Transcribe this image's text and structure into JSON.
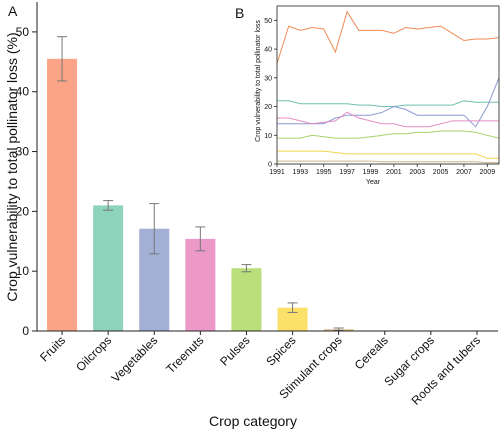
{
  "chart_data": [
    {
      "panel_label": "A",
      "type": "bar",
      "ylabel": "Crop vulnerability to total pollinator loss (%)",
      "xlabel": "Crop category",
      "ylim": [
        0,
        55
      ],
      "yticks": [
        0,
        10,
        20,
        30,
        40,
        50
      ],
      "categories": [
        "Fruits",
        "Oilcrops",
        "Vegetables",
        "Treenuts",
        "Pulses",
        "Spices",
        "Stimulant crops",
        "Cereals",
        "Sugar crops",
        "Roots and tubers"
      ],
      "values": [
        45.5,
        21.0,
        17.1,
        15.4,
        10.5,
        3.9,
        0.3,
        0,
        0,
        0
      ],
      "errors": [
        3.7,
        0.8,
        4.2,
        2.0,
        0.6,
        0.8,
        0.2,
        0,
        0,
        0
      ],
      "colors": [
        "#fca487",
        "#8ed3bc",
        "#a3b0d5",
        "#ec99c8",
        "#b9e07a",
        "#fbe16a",
        "#e1c28f",
        "#cccccc",
        "#cccccc",
        "#cccccc"
      ]
    },
    {
      "panel_label": "B",
      "type": "line",
      "ylabel": "Crop vulnerability to total pollinator loss",
      "xlabel": "Year",
      "xlim": [
        1991,
        2010
      ],
      "ylim": [
        0,
        55
      ],
      "xticks": [
        1991,
        1993,
        1995,
        1997,
        1999,
        2001,
        2003,
        2005,
        2007,
        2009
      ],
      "yticks": [
        0,
        10,
        20,
        30,
        40,
        50
      ],
      "x": [
        1991,
        1992,
        1993,
        1994,
        1995,
        1996,
        1997,
        1998,
        1999,
        2000,
        2001,
        2002,
        2003,
        2004,
        2005,
        2006,
        2007,
        2008,
        2009,
        2010
      ],
      "series": [
        {
          "color": "#ee8a55",
          "values": [
            35,
            48,
            46.5,
            47.5,
            47,
            39,
            53,
            46.5,
            46.5,
            46.5,
            45.5,
            47.5,
            47,
            47.5,
            48,
            45.5,
            43,
            43.5,
            43.5,
            44
          ]
        },
        {
          "color": "#6fc0b0",
          "values": [
            22,
            22,
            21,
            21,
            21,
            21,
            21,
            20.5,
            20.5,
            20,
            20,
            20.5,
            20.5,
            20.5,
            20.5,
            20.5,
            22,
            21.5,
            21.5,
            21.5
          ]
        },
        {
          "color": "#8c9ad0",
          "values": [
            14,
            14,
            14,
            14,
            14,
            16,
            17,
            17,
            17,
            18,
            20,
            19,
            17,
            17,
            17,
            17,
            17,
            13,
            20,
            30
          ]
        },
        {
          "color": "#e48dc2",
          "values": [
            16,
            16,
            15,
            14,
            14.5,
            15,
            18,
            16,
            15,
            14,
            14,
            13,
            13,
            13,
            14,
            15,
            15,
            15,
            15,
            15
          ]
        },
        {
          "color": "#a6d26a",
          "values": [
            9,
            9,
            9,
            10,
            9.5,
            9,
            9,
            9,
            9.5,
            10,
            10.5,
            10.5,
            11,
            11,
            11.5,
            11.5,
            11.5,
            11,
            10,
            9
          ]
        },
        {
          "color": "#f0d64a",
          "values": [
            4.5,
            4.5,
            4.5,
            4.5,
            4.5,
            4,
            3.5,
            3.5,
            3.5,
            3.5,
            3.5,
            3.5,
            3.5,
            3.5,
            3.5,
            3.5,
            3.5,
            3.5,
            2,
            2
          ]
        },
        {
          "color": "#c9b48a",
          "values": [
            1,
            1,
            1,
            1,
            1,
            1,
            1,
            1,
            1,
            0.8,
            0.8,
            0.8,
            0.8,
            0.8,
            0.8,
            0.8,
            0.8,
            0.8,
            0.5,
            0.5
          ]
        },
        {
          "color": "#bbbbbb",
          "values": [
            0,
            0,
            0,
            0,
            0,
            0,
            0,
            0,
            0,
            0,
            0,
            0,
            0,
            0,
            0,
            0,
            0,
            0,
            0,
            0
          ]
        }
      ]
    }
  ]
}
